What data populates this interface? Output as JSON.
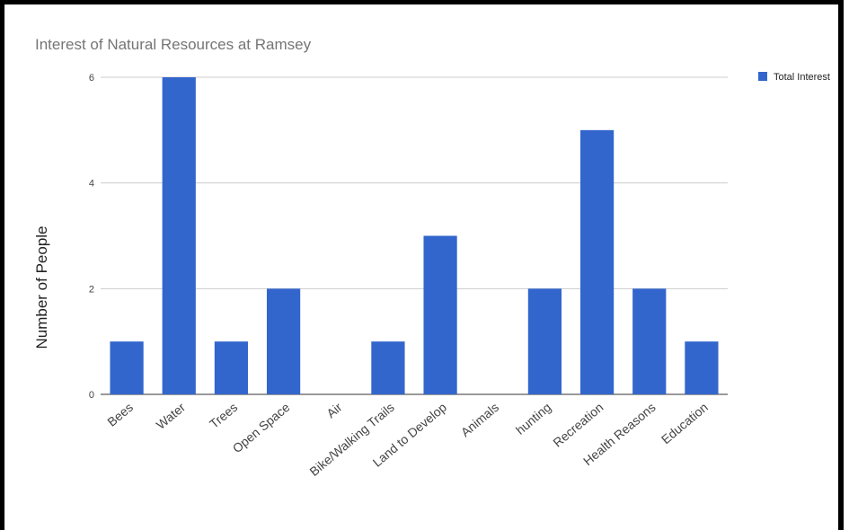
{
  "chart_data": {
    "type": "bar",
    "title": "Interest of Natural Resources at Ramsey",
    "xlabel": "",
    "ylabel": "Number of People",
    "categories": [
      "Bees",
      "Water",
      "Trees",
      "Open Space",
      "Air",
      "Bike/Walking Trails",
      "Land to Develop",
      "Animals",
      "hunting",
      "Recreation",
      "Health Reasons",
      "Education"
    ],
    "series": [
      {
        "name": "Total Interest",
        "values": [
          1,
          6,
          1,
          2,
          0,
          1,
          3,
          0,
          2,
          5,
          2,
          1
        ],
        "color": "#3366cc"
      }
    ],
    "yticks": [
      "0",
      "2",
      "4",
      "6"
    ],
    "ylim": [
      0,
      6
    ],
    "grid": true,
    "legend": "right"
  }
}
